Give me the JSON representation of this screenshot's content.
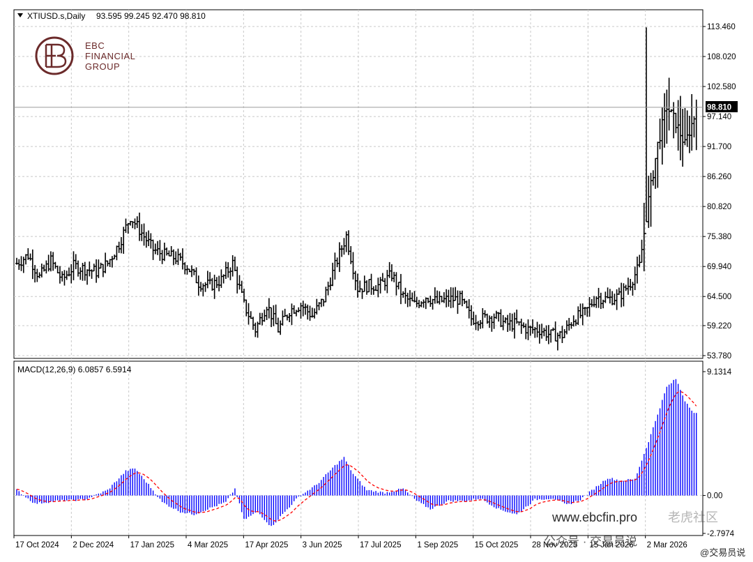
{
  "header": {
    "symbol_label": "XTIUSD.s,Daily",
    "ohlc_label": "93.595 99.245 92.470 98.810",
    "macd_label": "MACD(12,26,9) 6.0857 6.5914"
  },
  "logo": {
    "line1": "EBC",
    "line2": "FINANCIAL",
    "line3": "GROUP",
    "color": "#6b2a2a"
  },
  "watermarks": {
    "site": "www.ebcfin.pro",
    "wechat": "公众号 · 交易员说",
    "handle": "@交易员说",
    "community": "老虎社区"
  },
  "colors": {
    "bar": "#000000",
    "macd_hist": "#0000ff",
    "signal": "#ff0000",
    "grid": "#c8c8c8",
    "price_line": "#9a9a9a",
    "price_tag_bg": "#000000"
  },
  "chart_data": [
    {
      "type": "bar",
      "subtype": "ohlc",
      "title": "XTIUSD.s,Daily",
      "ylim": [
        53.78,
        113.46
      ],
      "y_ticks": [
        "113.460",
        "108.020",
        "102.580",
        "97.140",
        "91.700",
        "86.260",
        "80.820",
        "75.380",
        "69.940",
        "64.500",
        "59.220",
        "53.780"
      ],
      "x_ticks": [
        "17 Oct 2024",
        "2 Dec 2024",
        "17 Jan 2025",
        "4 Mar 2025",
        "17 Apr 2025",
        "3 Jun 2025",
        "17 Jul 2025",
        "1 Sep 2025",
        "15 Oct 2025",
        "28 Nov 2025",
        "15 Jan 2026",
        "2 Mar 2026"
      ],
      "last_price": 98.81,
      "last_price_label": "98.810",
      "grid": true,
      "path": [
        [
          0,
          70.5
        ],
        [
          5,
          72
        ],
        [
          10,
          68
        ],
        [
          15,
          71
        ],
        [
          20,
          67.5
        ],
        [
          25,
          70
        ],
        [
          30,
          69.5
        ],
        [
          35,
          69
        ],
        [
          40,
          70.5
        ],
        [
          45,
          74
        ],
        [
          50,
          79
        ],
        [
          55,
          76
        ],
        [
          60,
          73
        ],
        [
          65,
          72
        ],
        [
          70,
          71.5
        ],
        [
          75,
          70
        ],
        [
          80,
          67
        ],
        [
          85,
          66.5
        ],
        [
          90,
          67.5
        ],
        [
          95,
          70.5
        ],
        [
          100,
          63
        ],
        [
          105,
          58.5
        ],
        [
          110,
          63
        ],
        [
          115,
          58.5
        ],
        [
          120,
          62
        ],
        [
          125,
          63
        ],
        [
          130,
          61
        ],
        [
          135,
          64
        ],
        [
          140,
          70
        ],
        [
          145,
          75.5
        ],
        [
          150,
          66
        ],
        [
          155,
          66.5
        ],
        [
          160,
          66.5
        ],
        [
          165,
          68.5
        ],
        [
          170,
          64.5
        ],
        [
          175,
          63
        ],
        [
          180,
          64.5
        ],
        [
          185,
          63.5
        ],
        [
          190,
          64
        ],
        [
          195,
          64
        ],
        [
          200,
          60.5
        ],
        [
          205,
          60.5
        ],
        [
          210,
          61
        ],
        [
          215,
          59.5
        ],
        [
          220,
          59.5
        ],
        [
          225,
          58.5
        ],
        [
          230,
          58.5
        ],
        [
          235,
          57.5
        ],
        [
          240,
          57.5
        ],
        [
          245,
          60.5
        ],
        [
          250,
          61.5
        ],
        [
          255,
          64.5
        ],
        [
          260,
          64
        ],
        [
          265,
          64.5
        ],
        [
          270,
          67
        ],
        [
          274,
          70
        ],
        [
          278,
          82
        ],
        [
          282,
          92
        ],
        [
          286,
          99
        ],
        [
          290,
          96
        ],
        [
          294,
          92
        ],
        [
          298,
          97
        ]
      ],
      "spike": {
        "t": 277,
        "high": 113.3,
        "low": 78
      }
    },
    {
      "type": "bar",
      "subtype": "macd",
      "title": "MACD(12,26,9)",
      "ylim": [
        -2.7974,
        9.1314
      ],
      "y_ticks": [
        "9.1314",
        "0.00",
        "-2.7974"
      ],
      "macd": 6.0857,
      "signal": 6.5914,
      "path": [
        [
          0,
          0.4
        ],
        [
          8,
          -0.6
        ],
        [
          18,
          -0.4
        ],
        [
          30,
          -0.3
        ],
        [
          40,
          0.4
        ],
        [
          48,
          1.8
        ],
        [
          52,
          2.0
        ],
        [
          58,
          0.8
        ],
        [
          64,
          -0.5
        ],
        [
          72,
          -1.2
        ],
        [
          78,
          -1.4
        ],
        [
          84,
          -1.0
        ],
        [
          92,
          -0.5
        ],
        [
          96,
          0.5
        ],
        [
          100,
          -1.8
        ],
        [
          106,
          -1.2
        ],
        [
          112,
          -2.3
        ],
        [
          118,
          -1.2
        ],
        [
          124,
          -0.1
        ],
        [
          132,
          0.8
        ],
        [
          140,
          2.2
        ],
        [
          144,
          2.8
        ],
        [
          148,
          1.6
        ],
        [
          154,
          0.4
        ],
        [
          162,
          0.2
        ],
        [
          170,
          0.5
        ],
        [
          176,
          -0.4
        ],
        [
          182,
          -1.0
        ],
        [
          190,
          -0.4
        ],
        [
          198,
          -0.4
        ],
        [
          204,
          -0.2
        ],
        [
          212,
          -1.0
        ],
        [
          220,
          -1.4
        ],
        [
          228,
          -0.3
        ],
        [
          236,
          -0.2
        ],
        [
          242,
          -0.7
        ],
        [
          248,
          -0.3
        ],
        [
          254,
          0.5
        ],
        [
          260,
          1.3
        ],
        [
          266,
          1.1
        ],
        [
          272,
          1.2
        ],
        [
          278,
          4.0
        ],
        [
          282,
          6.0
        ],
        [
          286,
          8.0
        ],
        [
          290,
          8.6
        ],
        [
          294,
          7.0
        ],
        [
          298,
          6.1
        ]
      ]
    }
  ]
}
